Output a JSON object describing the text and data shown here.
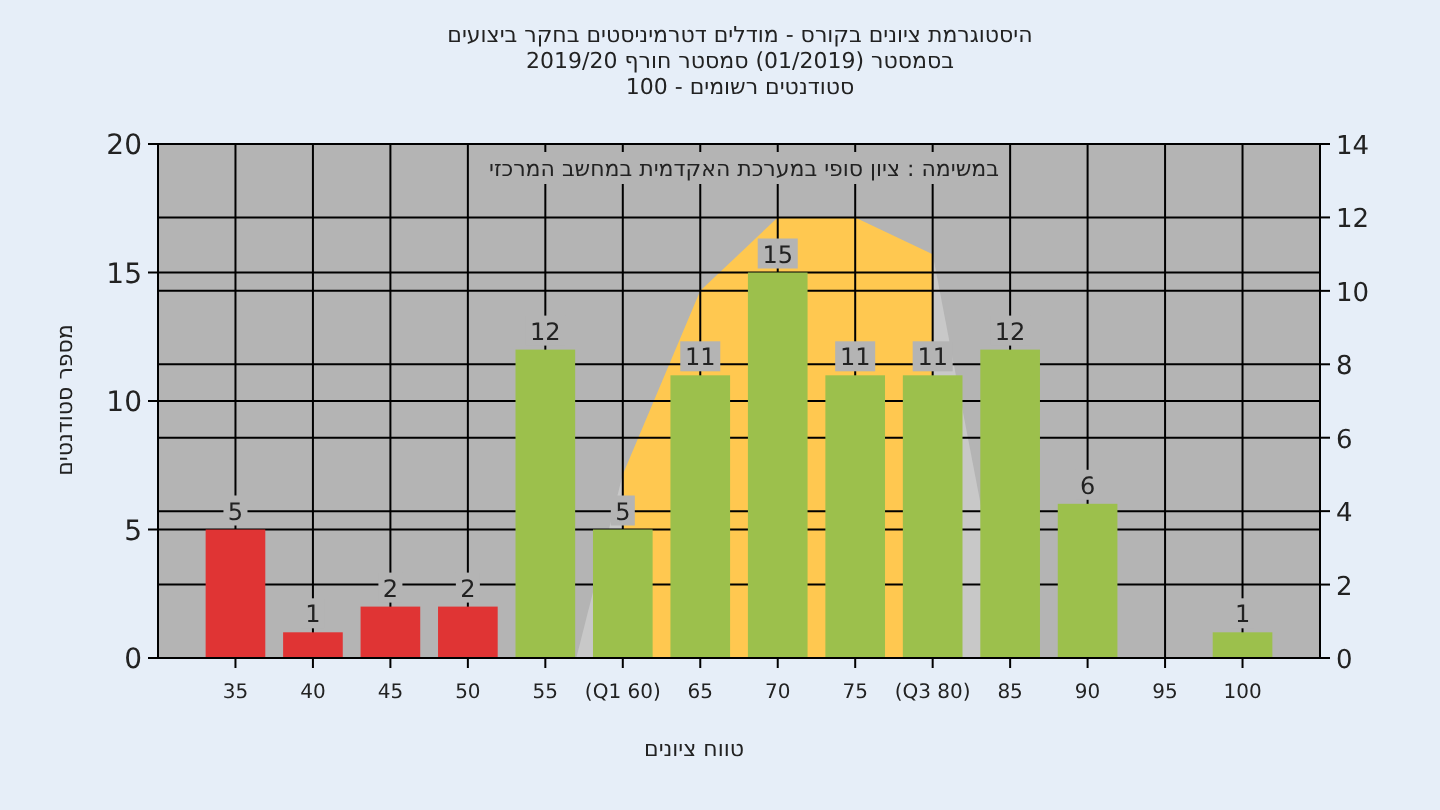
{
  "chart_data": {
    "type": "bar",
    "title": "היסטוגרמת ציונים בקורס - מודלים דטרמיניסטים בחקר ביצועים",
    "subtitle": "בסמסטר  (01/2019)  סמסטר חורף 2019/20\nסטודנטים רשומים - 100",
    "annotations": [
      "במשימה : ציון סופי במערכת האקדמית במחשב המרכזי"
    ],
    "xlabel": "טווח ציונים",
    "ylabel": "מספר סטודנטים",
    "xlim": [
      30,
      105
    ],
    "xticks": [
      35,
      40,
      45,
      50,
      55,
      {
        "value": 60,
        "label": "(Q1 60)"
      },
      65,
      70,
      75,
      {
        "value": 80,
        "label": "(Q3 80)"
      },
      85,
      90,
      95,
      100
    ],
    "ylim": [
      0,
      20
    ],
    "yticks": [
      0,
      5,
      10,
      15,
      20
    ],
    "y2lim": [
      0,
      14
    ],
    "y2ticks": [
      0,
      2,
      4,
      6,
      8,
      10,
      12,
      14
    ],
    "grid": true,
    "series": [
      {
        "type": "area",
        "axis": "y2",
        "color": "#c8c8c8",
        "x": [
          57,
          60
        ],
        "values": [
          0,
          5
        ]
      },
      {
        "type": "area",
        "axis": "y2",
        "color": "#ffc850",
        "x": [
          60,
          65,
          70,
          75,
          80
        ],
        "values": [
          5,
          10,
          12,
          12,
          11
        ]
      },
      {
        "type": "area",
        "axis": "y2",
        "color": "#c8c8c8",
        "x": [
          80,
          85
        ],
        "values": [
          11,
          0
        ]
      },
      {
        "type": "bar",
        "x": [
          35,
          40,
          45,
          50,
          55,
          60,
          65,
          70,
          75,
          80,
          85,
          90,
          95,
          100
        ],
        "values": [
          5,
          1,
          2,
          2,
          12,
          5,
          11,
          15,
          11,
          11,
          12,
          6,
          0,
          1
        ],
        "colors": [
          "#e03434",
          "#e03434",
          "#e03434",
          "#e03434",
          "#9cc04c",
          "#9cc04c",
          "#9cc04c",
          "#9cc04c",
          "#9cc04c",
          "#9cc04c",
          "#9cc04c",
          "#9cc04c",
          "#9cc04c",
          "#9cc04c"
        ],
        "value_labels": [
          "5",
          "1",
          "2",
          "2",
          "12",
          "5",
          "11",
          "15",
          "11",
          "11",
          "12",
          "6",
          null,
          "1"
        ]
      }
    ]
  }
}
